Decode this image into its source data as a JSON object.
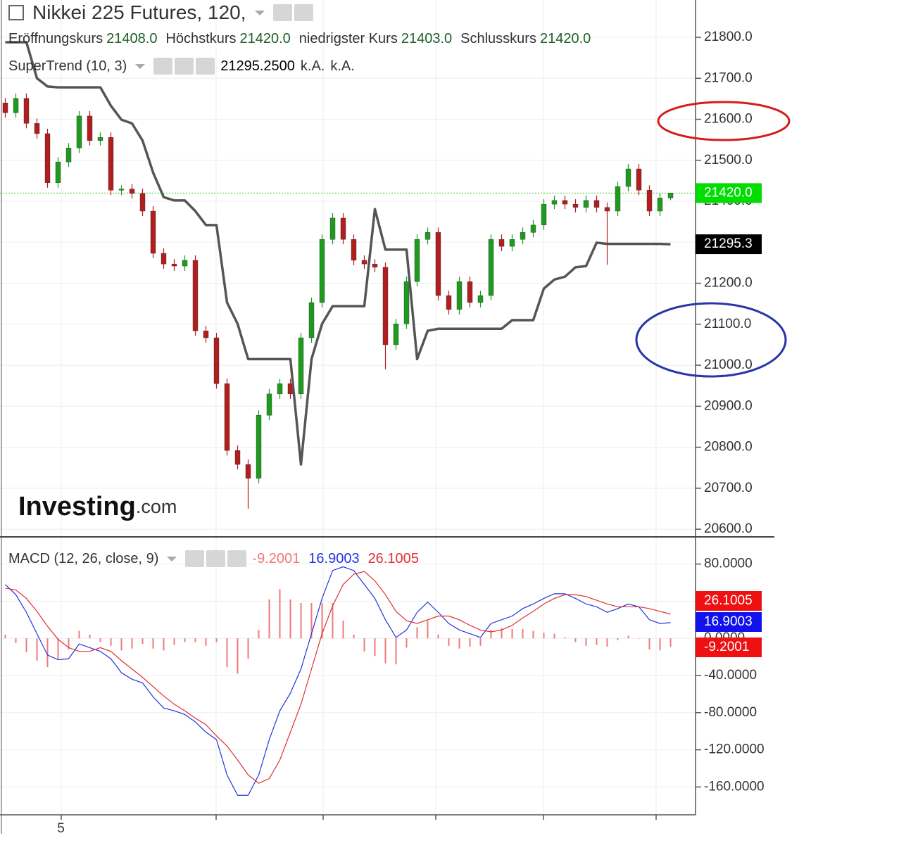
{
  "watermark": [
    "Investing",
    ".com"
  ],
  "chart_data": [
    {
      "type": "candlestick",
      "title": "Nikkei 225 Futures, 120,",
      "ohlc_legend": [
        {
          "label": "Eröffnungskurs",
          "value": "21408.0"
        },
        {
          "label": "Höchstkurs",
          "value": "21420.0"
        },
        {
          "label": "niedrigster Kurs",
          "value": "21403.0"
        },
        {
          "label": "Schlusskurs",
          "value": "21420.0"
        }
      ],
      "last_label": "21420.0",
      "up_color": "#1e9b1e",
      "down_color": "#b21d1d",
      "last_line_color": "#33cc33",
      "last_badge_color": "#00dd00",
      "categories": [
        null,
        null,
        null,
        null,
        null,
        "5",
        null,
        null,
        null,
        null,
        null,
        null,
        null,
        null,
        null,
        null,
        null,
        null,
        null,
        null,
        null,
        null,
        null,
        null,
        null,
        null,
        null,
        null,
        null,
        null,
        null,
        null,
        null,
        null,
        null,
        null,
        null,
        null,
        null,
        null,
        null,
        null,
        null,
        null,
        null,
        null,
        null,
        null,
        null,
        null,
        null,
        null,
        null,
        null,
        null,
        null,
        null,
        null,
        null,
        null,
        null,
        null,
        null,
        null
      ],
      "open": [
        21640,
        21616,
        21651,
        21590,
        21565,
        21445,
        21496,
        21530,
        21608,
        21548,
        21556,
        21427,
        21430,
        21419,
        21376,
        21273,
        21247,
        21242,
        21256,
        21084,
        21067,
        20955,
        20792,
        20758,
        20724,
        20878,
        20930,
        20955,
        20930,
        21067,
        21153,
        21307,
        21359,
        21307,
        21256,
        21247,
        21239,
        21050,
        21101,
        21204,
        21307,
        21324,
        21170,
        21136,
        21204,
        21153,
        21170,
        21307,
        21290,
        21307,
        21324,
        21342,
        21393,
        21402,
        21393,
        21385,
        21402,
        21385,
        21376,
        21436,
        21479,
        21427,
        21376,
        21408
      ],
      "high": [
        21652,
        21663,
        21663,
        21602,
        21577,
        21508,
        21542,
        21620,
        21620,
        21568,
        21568,
        21439,
        21442,
        21431,
        21388,
        21285,
        21259,
        21268,
        21268,
        21096,
        21079,
        20967,
        20804,
        20770,
        20890,
        20942,
        20967,
        20967,
        21079,
        21165,
        21319,
        21371,
        21371,
        21319,
        21268,
        21259,
        21251,
        21113,
        21216,
        21319,
        21336,
        21336,
        21182,
        21216,
        21216,
        21182,
        21319,
        21319,
        21319,
        21336,
        21354,
        21405,
        21414,
        21414,
        21405,
        21414,
        21414,
        21397,
        21448,
        21491,
        21491,
        21439,
        21420,
        21420
      ],
      "low": [
        21604,
        21604,
        21578,
        21553,
        21433,
        21433,
        21484,
        21518,
        21536,
        21536,
        21415,
        21415,
        21407,
        21364,
        21261,
        21235,
        21230,
        21230,
        21072,
        21055,
        20943,
        20780,
        20746,
        20650,
        20712,
        20866,
        20918,
        20918,
        20918,
        21055,
        21141,
        21295,
        21295,
        21244,
        21235,
        21227,
        20990,
        21038,
        21089,
        21192,
        21295,
        21158,
        21124,
        21124,
        21141,
        21141,
        21158,
        21278,
        21278,
        21295,
        21312,
        21330,
        21381,
        21381,
        21373,
        21373,
        21373,
        21245,
        21364,
        21424,
        21415,
        21364,
        21364,
        21403
      ],
      "close": [
        21616,
        21651,
        21590,
        21565,
        21445,
        21496,
        21530,
        21608,
        21548,
        21556,
        21427,
        21430,
        21419,
        21376,
        21273,
        21247,
        21242,
        21256,
        21084,
        21067,
        20955,
        20792,
        20758,
        20724,
        20878,
        20930,
        20955,
        20930,
        21067,
        21153,
        21307,
        21359,
        21307,
        21256,
        21247,
        21239,
        21050,
        21101,
        21204,
        21307,
        21324,
        21170,
        21136,
        21204,
        21153,
        21170,
        21307,
        21290,
        21307,
        21324,
        21342,
        21393,
        21402,
        21393,
        21385,
        21402,
        21385,
        21376,
        21436,
        21479,
        21427,
        21376,
        21408,
        21420
      ],
      "series": [
        {
          "name": "SuperTrend (10, 3)",
          "color": "#555555",
          "legend_values": [
            "21295.2500",
            "k.A.",
            "k.A."
          ],
          "last_label": "21295.3",
          "badge_color": "#000000",
          "values": [
            21788,
            21788,
            21788,
            21700,
            21680,
            21678,
            21678,
            21678,
            21678,
            21678,
            21633,
            21599,
            21590,
            21548,
            21470,
            21410,
            21402,
            21402,
            21376,
            21342,
            21342,
            21153,
            21101,
            21015,
            21015,
            21015,
            21015,
            21015,
            20758,
            21015,
            21101,
            21144,
            21144,
            21144,
            21144,
            21381,
            21282,
            21282,
            21282,
            21015,
            21084,
            21089,
            21089,
            21089,
            21089,
            21089,
            21089,
            21089,
            21110,
            21110,
            21110,
            21187,
            21209,
            21216,
            21239,
            21242,
            21299,
            21296,
            21296,
            21296,
            21296,
            21296,
            21296,
            21295.25
          ]
        }
      ],
      "ylim": [
        20583,
        21891
      ],
      "yticks": [
        {
          "value": 20600,
          "label": "20600.0"
        },
        {
          "value": 20700,
          "label": "20700.0"
        },
        {
          "value": 20800,
          "label": "20800.0"
        },
        {
          "value": 20900,
          "label": "20900.0"
        },
        {
          "value": 21000,
          "label": "21000.0"
        },
        {
          "value": 21100,
          "label": "21100.0"
        },
        {
          "value": 21200,
          "label": "21200.0"
        },
        {
          "value": 21300,
          "label": "21300.0"
        },
        {
          "value": 21400,
          "label": "21400.0"
        },
        {
          "value": 21500,
          "label": "21500.0"
        },
        {
          "value": 21600,
          "label": "21600.0"
        },
        {
          "value": 21700,
          "label": "21700.0"
        },
        {
          "value": 21800,
          "label": "21800.0"
        }
      ],
      "grid": true
    },
    {
      "type": "combo",
      "title": "MACD (12, 26, close, 9)",
      "series": [
        {
          "name": "Histogram",
          "kind": "bar",
          "color": "#f07878",
          "legend_value": "-9.2001",
          "badge_color": "#ee1111",
          "values": [
            4,
            -5,
            -15,
            -24,
            -31,
            -22,
            -12,
            8,
            4,
            -4,
            -8,
            -13,
            -11,
            -6,
            -11,
            -13,
            -7,
            -4,
            -4,
            -8,
            -4,
            -31,
            -38,
            -22,
            9,
            42,
            53,
            42,
            38,
            38,
            38,
            38,
            19,
            4,
            -14,
            -19,
            -27,
            -28,
            -10,
            12,
            19,
            4,
            -8,
            -11,
            -9,
            -8,
            9,
            11,
            10,
            10,
            8,
            6,
            5,
            1,
            -4,
            -8,
            -7,
            -9,
            -2,
            3,
            0,
            -12,
            -13,
            -9.2001
          ]
        },
        {
          "name": "MACD",
          "kind": "line",
          "color": "#2233dd",
          "legend_value": "16.9003",
          "badge_color": "#1111ee",
          "values": [
            58,
            47,
            28,
            5,
            -18,
            -23,
            -22,
            -6,
            -10,
            -14,
            -22,
            -37,
            -44,
            -48,
            -63,
            -75,
            -78,
            -82,
            -90,
            -101,
            -109,
            -147,
            -169,
            -169,
            -147,
            -109,
            -78,
            -59,
            -33,
            5,
            43,
            73,
            77,
            73,
            58,
            43,
            20,
            1,
            9,
            28,
            39,
            28,
            16,
            9,
            5,
            1,
            16,
            20,
            24,
            32,
            37,
            43,
            48,
            48,
            43,
            37,
            34,
            28,
            32,
            37,
            34,
            20,
            16,
            16.9003
          ]
        },
        {
          "name": "Signal",
          "kind": "line",
          "color": "#e03030",
          "legend_value": "26.1005",
          "badge_color": "#ee1111",
          "values": [
            54,
            52,
            43,
            29,
            13,
            -1,
            -10,
            -14,
            -14,
            -10,
            -14,
            -24,
            -33,
            -42,
            -52,
            -62,
            -71,
            -78,
            -86,
            -93,
            -105,
            -116,
            -131,
            -147,
            -156,
            -151,
            -131,
            -101,
            -71,
            -33,
            5,
            35,
            58,
            69,
            72,
            62,
            47,
            29,
            19,
            16,
            20,
            24,
            24,
            20,
            14,
            9,
            7,
            9,
            14,
            22,
            29,
            37,
            43,
            47,
            47,
            45,
            41,
            37,
            34,
            34,
            34,
            32,
            29,
            26.1005
          ]
        }
      ],
      "legend_order": [
        0,
        1,
        2
      ],
      "ylim": [
        -190,
        110
      ],
      "yticks": [
        {
          "value": 80,
          "label": "80.0000"
        },
        {
          "value": 40,
          "label": "40.0000"
        },
        {
          "value": 0,
          "label": "0.0000"
        },
        {
          "value": -40,
          "label": "-40.0000"
        },
        {
          "value": -80,
          "label": "-80.0000"
        },
        {
          "value": -120,
          "label": "-120.0000"
        },
        {
          "value": -160,
          "label": "-160.0000"
        }
      ],
      "grid": true
    }
  ]
}
